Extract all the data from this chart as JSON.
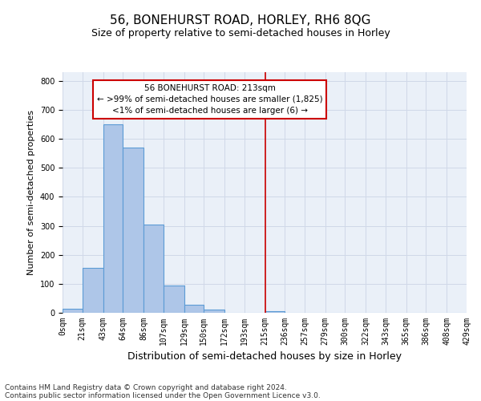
{
  "title": "56, BONEHURST ROAD, HORLEY, RH6 8QG",
  "subtitle": "Size of property relative to semi-detached houses in Horley",
  "xlabel": "Distribution of semi-detached houses by size in Horley",
  "ylabel": "Number of semi-detached properties",
  "footer1": "Contains HM Land Registry data © Crown copyright and database right 2024.",
  "footer2": "Contains public sector information licensed under the Open Government Licence v3.0.",
  "bin_edges": [
    0,
    21,
    43,
    64,
    86,
    107,
    129,
    150,
    172,
    193,
    215,
    236,
    257,
    279,
    300,
    322,
    343,
    365,
    386,
    408,
    429
  ],
  "bar_heights": [
    13,
    155,
    650,
    570,
    305,
    95,
    27,
    10,
    0,
    0,
    6,
    0,
    0,
    0,
    0,
    0,
    0,
    0,
    0,
    0
  ],
  "bar_color": "#aec6e8",
  "bar_edgecolor": "#5b9bd5",
  "bar_linewidth": 0.8,
  "vline_x": 215,
  "vline_color": "#cc0000",
  "vline_linewidth": 1.2,
  "annotation_box_text": "56 BONEHURST ROAD: 213sqm\n← >99% of semi-detached houses are smaller (1,825)\n<1% of semi-detached houses are larger (6) →",
  "annotation_box_color": "#cc0000",
  "annotation_box_facecolor": "white",
  "annotation_fontsize": 7.5,
  "xlim": [
    0,
    429
  ],
  "ylim": [
    0,
    830
  ],
  "yticks": [
    0,
    100,
    200,
    300,
    400,
    500,
    600,
    700,
    800
  ],
  "xtick_labels": [
    "0sqm",
    "21sqm",
    "43sqm",
    "64sqm",
    "86sqm",
    "107sqm",
    "129sqm",
    "150sqm",
    "172sqm",
    "193sqm",
    "215sqm",
    "236sqm",
    "257sqm",
    "279sqm",
    "300sqm",
    "322sqm",
    "343sqm",
    "365sqm",
    "386sqm",
    "408sqm",
    "429sqm"
  ],
  "grid_color": "#d0d8e8",
  "background_color": "#eaf0f8",
  "title_fontsize": 11,
  "subtitle_fontsize": 9,
  "xlabel_fontsize": 9,
  "ylabel_fontsize": 8,
  "tick_fontsize": 7,
  "footer_fontsize": 6.5
}
